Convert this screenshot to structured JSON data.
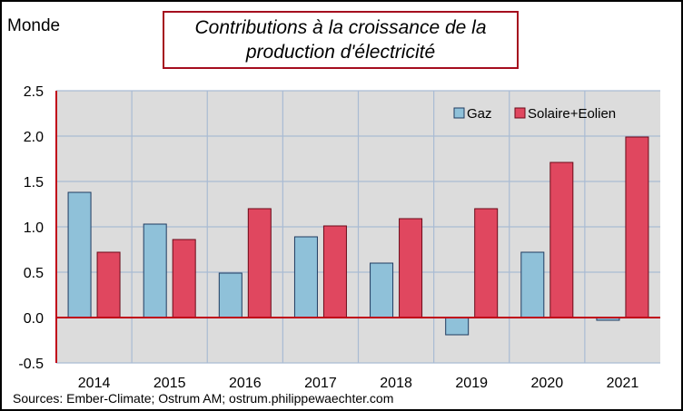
{
  "region_label": "Monde",
  "title_line1": "Contributions à la croissance de la",
  "title_line2": "production d'électricité",
  "source": "Sources: Ember-Climate;  Ostrum  AM; ostrum.philippewaechter.com",
  "colors": {
    "plot_bg": "#dcdcdc",
    "grid": "#a9bbd3",
    "zero_line": "#c00018",
    "gaz": "#8fc1d9",
    "solaire_eolien": "#e0475f",
    "title_border": "#a50d1e"
  },
  "chart_data": {
    "type": "bar",
    "title": "Contributions à la croissance de la production d'électricité",
    "categories": [
      "2014",
      "2015",
      "2016",
      "2017",
      "2018",
      "2019",
      "2020",
      "2021"
    ],
    "series": [
      {
        "name": "Gaz",
        "values": [
          1.38,
          1.03,
          0.49,
          0.89,
          0.6,
          -0.19,
          0.72,
          -0.03
        ]
      },
      {
        "name": "Solaire+Eolien",
        "values": [
          0.72,
          0.86,
          1.2,
          1.01,
          1.09,
          1.2,
          1.71,
          1.99
        ]
      }
    ],
    "yticks": [
      "2.5",
      "2.0",
      "1.5",
      "1.0",
      "0.5",
      "0.0",
      "-0.5"
    ],
    "ylim": [
      -0.5,
      2.5
    ],
    "grid": true,
    "legend_position": "top-right"
  }
}
